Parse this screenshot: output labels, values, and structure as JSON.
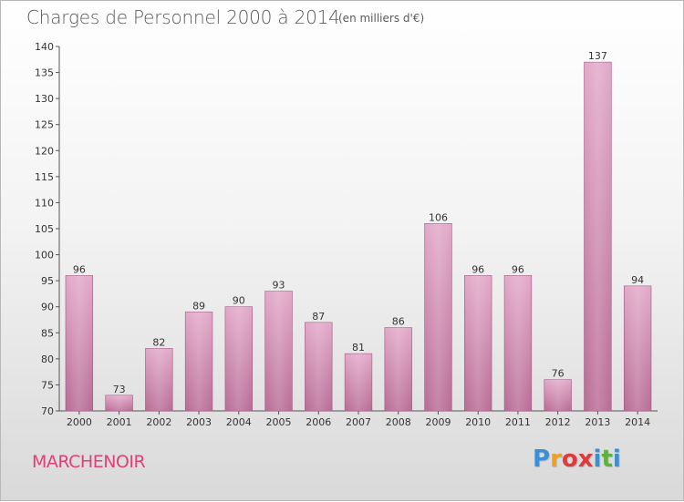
{
  "header": {
    "title": "Charges de Personnel 2000 à 2014",
    "unit": "(en milliers d'€)"
  },
  "footer": {
    "commune": "MARCHENOIR",
    "logo_letters": [
      "P",
      "r",
      "o",
      "x",
      "i",
      "t",
      "i"
    ],
    "logo_colors": [
      "#3a8fd6",
      "#f0a020",
      "#e03a3a",
      "#e03a3a",
      "#3a8fd6",
      "#60b040",
      "#3a8fd6"
    ]
  },
  "chart_data": {
    "type": "bar",
    "categories": [
      "2000",
      "2001",
      "2002",
      "2003",
      "2004",
      "2005",
      "2006",
      "2007",
      "2008",
      "2009",
      "2010",
      "2011",
      "2012",
      "2013",
      "2014"
    ],
    "values": [
      96,
      73,
      82,
      89,
      90,
      93,
      87,
      81,
      86,
      106,
      96,
      96,
      76,
      137,
      94
    ],
    "ylim": [
      70,
      140
    ],
    "yticks": [
      70,
      75,
      80,
      85,
      90,
      95,
      100,
      105,
      110,
      115,
      120,
      125,
      130,
      135,
      140
    ],
    "bar_color": "#d58bb3",
    "grid": false
  }
}
